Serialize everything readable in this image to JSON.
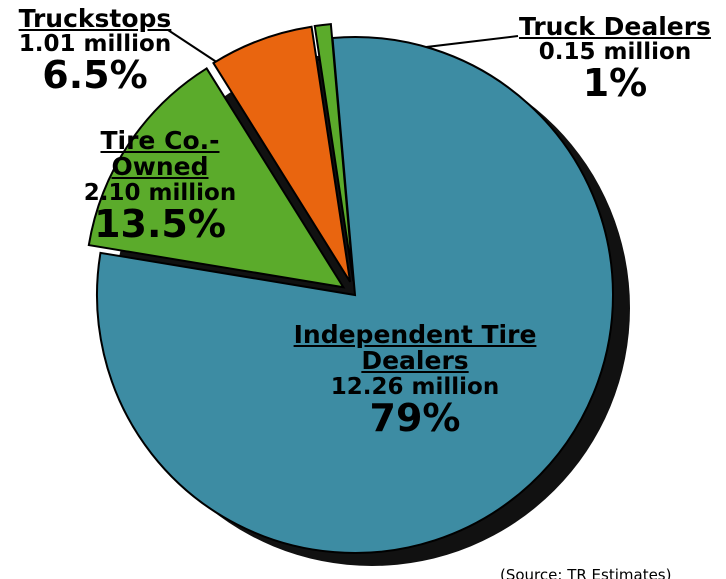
{
  "chart_data": {
    "type": "pie",
    "categories": [
      "Independent Tire Dealers",
      "Tire Co.-Owned",
      "Truckstops",
      "Truck Dealers"
    ],
    "values": [
      79,
      13.5,
      6.5,
      1
    ],
    "value_labels": [
      "79%",
      "13.5%",
      "6.5%",
      "1%"
    ],
    "amount_labels": [
      "12.26 million",
      "2.10 million",
      "1.01 million",
      "0.15 million"
    ],
    "colors": [
      "#3d8ca3",
      "#5bab2b",
      "#e9650f",
      "#5bab2b"
    ],
    "source": "(Source: TR Estimates)"
  }
}
